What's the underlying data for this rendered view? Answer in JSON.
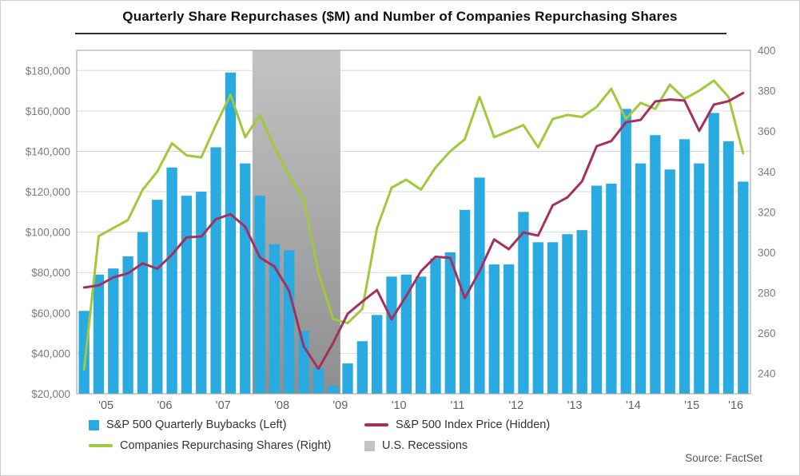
{
  "title": "Quarterly Share Repurchases ($M) and Number of Companies Repurchasing Shares",
  "source": "Source: FactSet",
  "legend": {
    "buybacks": "S&P 500 Quarterly Buybacks (Left)",
    "index_price": "S&P 500 Index Price (Hidden)",
    "companies": "Companies Repurchasing Shares (Right)",
    "recessions": "U.S. Recessions"
  },
  "colors": {
    "bars": "#29abe2",
    "companies": "#a0c93b",
    "index_price": "#a3305f",
    "recession_top": "#c3c3c3",
    "recession_bottom": "#8e8e8e",
    "gridline": "#d9d9d9",
    "plot_border": "#9c9c9c"
  },
  "chart_data": {
    "type": "combo",
    "title": "Quarterly Share Repurchases ($M) and Number of Companies Repurchasing Shares",
    "x_categories": [
      "2005 Q1",
      "2005 Q2",
      "2005 Q3",
      "2005 Q4",
      "2006 Q1",
      "2006 Q2",
      "2006 Q3",
      "2006 Q4",
      "2007 Q1",
      "2007 Q2",
      "2007 Q3",
      "2007 Q4",
      "2008 Q1",
      "2008 Q2",
      "2008 Q3",
      "2008 Q4",
      "2009 Q1",
      "2009 Q2",
      "2009 Q3",
      "2009 Q4",
      "2010 Q1",
      "2010 Q2",
      "2010 Q3",
      "2010 Q4",
      "2011 Q1",
      "2011 Q2",
      "2011 Q3",
      "2011 Q4",
      "2012 Q1",
      "2012 Q2",
      "2012 Q3",
      "2012 Q4",
      "2013 Q1",
      "2013 Q2",
      "2013 Q3",
      "2013 Q4",
      "2014 Q1",
      "2014 Q2",
      "2014 Q3",
      "2014 Q4",
      "2015 Q1",
      "2015 Q2",
      "2015 Q3",
      "2015 Q4",
      "2016 Q1",
      "2016 Q2"
    ],
    "axes": {
      "left": {
        "range": [
          20000,
          190000
        ],
        "tick_values": [
          20000,
          40000,
          60000,
          80000,
          100000,
          120000,
          140000,
          160000,
          180000
        ],
        "tick_labels": [
          "$20,000",
          "$40,000",
          "$60,000",
          "$80,000",
          "$100,000",
          "$120,000",
          "$140,000",
          "$160,000",
          "$180,000"
        ]
      },
      "right": {
        "range": [
          230,
          400
        ],
        "tick_values": [
          240,
          260,
          280,
          300,
          320,
          340,
          360,
          380,
          400
        ]
      },
      "hidden": {
        "range": [
          680,
          2300
        ]
      },
      "x": {
        "labels": [
          "'05",
          "'06",
          "'07",
          "'08",
          "'09",
          "'10",
          "'11",
          "'12",
          "'13",
          "'14",
          "'15",
          "'16"
        ]
      }
    },
    "series": [
      {
        "id": "buybacks",
        "name": "S&P 500 Quarterly Buybacks (Left)",
        "type": "bar",
        "axis": "left",
        "color": "bars",
        "values": [
          61000,
          79000,
          82000,
          88000,
          100000,
          116000,
          132000,
          118000,
          120000,
          142000,
          179000,
          134000,
          118000,
          94000,
          91000,
          51000,
          33000,
          24000,
          35000,
          46000,
          59000,
          78000,
          79000,
          78000,
          87000,
          90000,
          111000,
          127000,
          84000,
          84000,
          110000,
          95000,
          95000,
          99000,
          101000,
          123000,
          124000,
          161000,
          134000,
          148000,
          131000,
          146000,
          134000,
          159000,
          145000,
          125000
        ]
      },
      {
        "id": "companies",
        "name": "Companies Repurchasing Shares (Right)",
        "type": "line",
        "axis": "right",
        "color": "companies",
        "values": [
          242,
          308,
          312,
          316,
          331,
          340,
          354,
          348,
          347,
          363,
          378,
          357,
          368,
          352,
          338,
          326,
          290,
          267,
          265,
          272,
          312,
          332,
          336,
          331,
          342,
          350,
          356,
          377,
          357,
          360,
          363,
          352,
          366,
          368,
          367,
          372,
          381,
          366,
          374,
          371,
          383,
          376,
          380,
          385,
          377,
          349
        ]
      },
      {
        "id": "index_price",
        "name": "S&P 500 Index Price (Hidden)",
        "type": "line",
        "axis": "hidden",
        "color": "index_price",
        "values": [
          1181,
          1191,
          1229,
          1248,
          1295,
          1270,
          1336,
          1418,
          1421,
          1503,
          1527,
          1468,
          1323,
          1280,
          1166,
          903,
          798,
          919,
          1057,
          1115,
          1169,
          1031,
          1141,
          1258,
          1326,
          1321,
          1131,
          1258,
          1408,
          1362,
          1441,
          1426,
          1569,
          1606,
          1682,
          1848,
          1872,
          1960,
          1972,
          2059,
          2068,
          2063,
          1920,
          2044,
          2060,
          2099
        ]
      }
    ],
    "recession_band": {
      "label": "U.S. Recessions",
      "start": "2008 Q1",
      "end": "2009 Q2"
    },
    "grid": "horizontal",
    "legend_position": "bottom"
  }
}
